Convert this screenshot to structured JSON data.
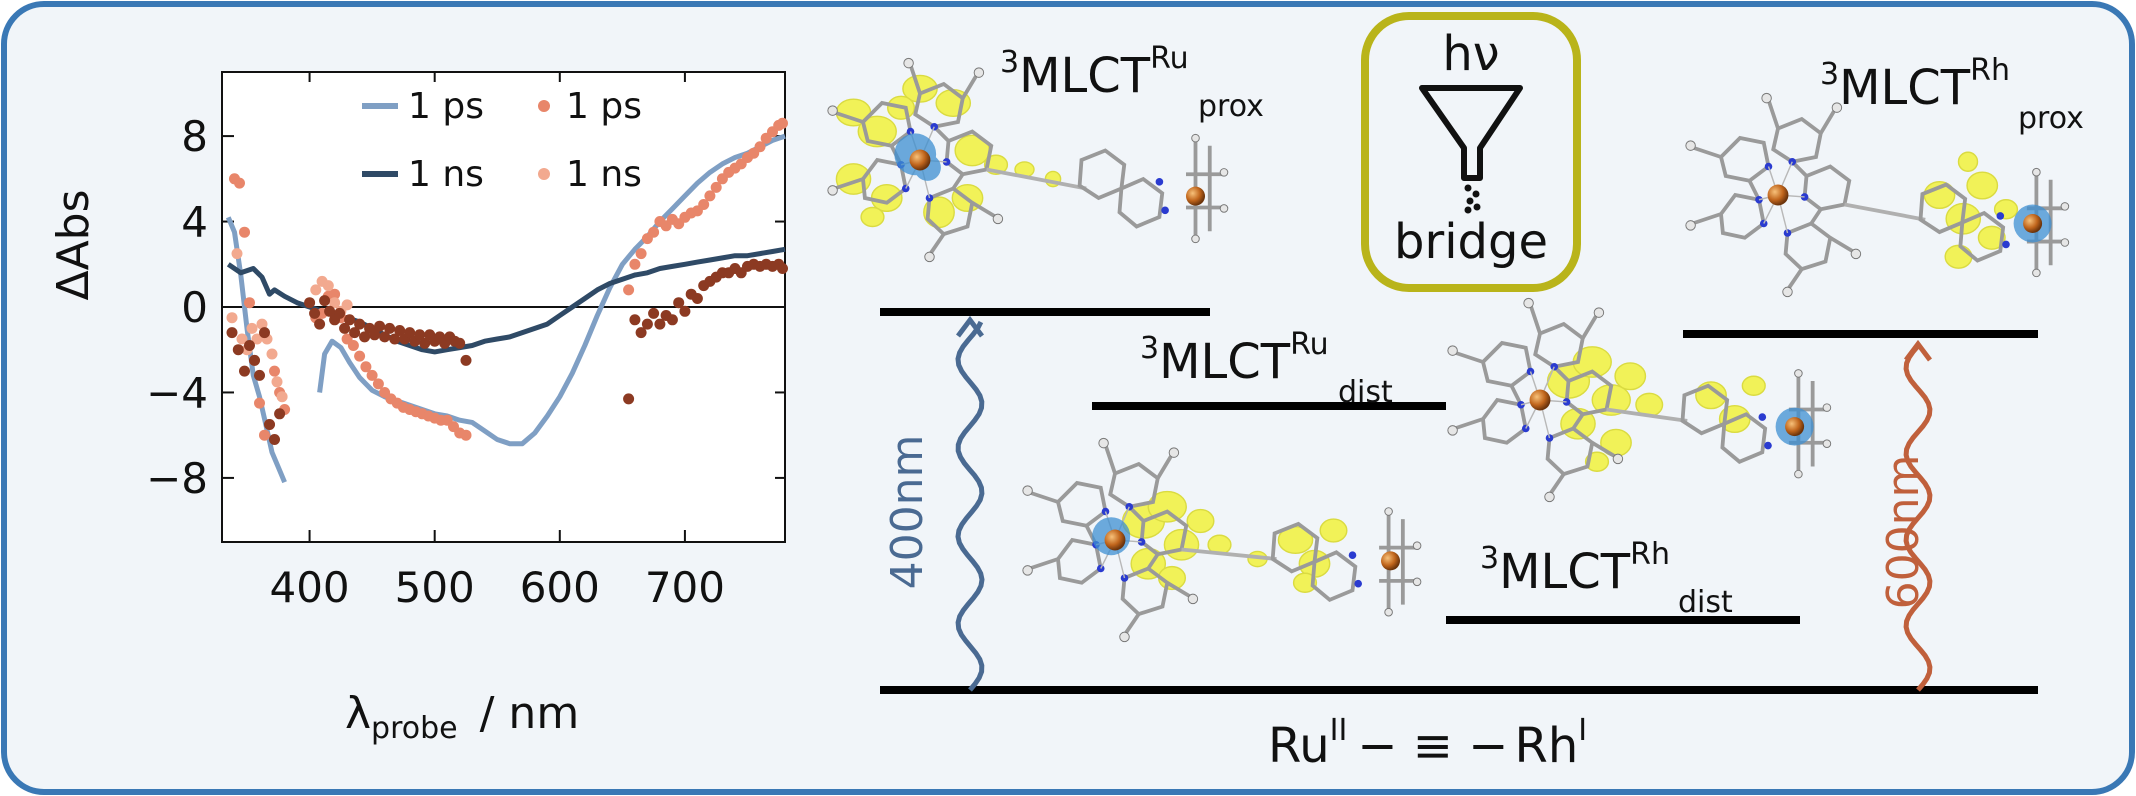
{
  "colors": {
    "frame_border": "#3a78b5",
    "frame_fill": "#f1f5f9",
    "blue_curve": "#7f9fc4",
    "dark_curve": "#2f4a66",
    "orange_dots": "#e8866a",
    "light_orange_dots": "#f2a98f",
    "brown_dots": "#8c3a22",
    "box_border": "#b9b41a",
    "arrow_400": "#4a6a92",
    "arrow_600": "#c0603c",
    "isosurface": "#f2f23c",
    "spin_blue": "#3d8fd1",
    "metal": "#c0651c"
  },
  "chart_data": {
    "type": "line",
    "ylabel": "ΔAbs",
    "xlabel_main": "λ",
    "xlabel_sub": "probe",
    "xlabel_unit": "/ nm",
    "xlim": [
      330,
      780
    ],
    "ylim": [
      -11,
      11
    ],
    "xticks": [
      "400",
      "500",
      "600",
      "700"
    ],
    "yticks": [
      "8",
      "4",
      "0",
      "−4",
      "−8"
    ],
    "legend": [
      {
        "label": "1 ps",
        "style": "line",
        "color": "#7f9fc4"
      },
      {
        "label": "1 ps",
        "style": "dot",
        "color": "#e8866a"
      },
      {
        "label": "1 ns",
        "style": "line",
        "color": "#2f4a66"
      },
      {
        "label": "1 ns",
        "style": "dot",
        "color": "#f2a98f"
      }
    ],
    "series": [
      {
        "name": "1 ps",
        "style": "line",
        "color": "#7f9fc4",
        "segments": [
          [
            [
              335,
              4.2
            ],
            [
              340,
              3.5
            ],
            [
              345,
              1.5
            ],
            [
              350,
              -1
            ],
            [
              355,
              -3.2
            ],
            [
              360,
              -4.2
            ],
            [
              365,
              -5.5
            ],
            [
              370,
              -6.8
            ],
            [
              375,
              -7.5
            ],
            [
              380,
              -8.2
            ]
          ],
          [
            [
              408,
              -4
            ],
            [
              412,
              -2.2
            ],
            [
              418,
              -1.6
            ],
            [
              425,
              -1.9
            ],
            [
              432,
              -2.6
            ],
            [
              440,
              -3.3
            ],
            [
              450,
              -3.9
            ],
            [
              460,
              -4.2
            ],
            [
              470,
              -4.4
            ],
            [
              480,
              -4.6
            ],
            [
              490,
              -4.8
            ],
            [
              500,
              -5.0
            ],
            [
              510,
              -5.1
            ],
            [
              520,
              -5.3
            ],
            [
              530,
              -5.4
            ],
            [
              540,
              -5.8
            ],
            [
              550,
              -6.2
            ],
            [
              560,
              -6.4
            ],
            [
              570,
              -6.4
            ],
            [
              580,
              -5.9
            ],
            [
              590,
              -5.1
            ],
            [
              600,
              -4.2
            ],
            [
              610,
              -3.1
            ],
            [
              620,
              -1.8
            ],
            [
              630,
              -0.4
            ],
            [
              640,
              0.9
            ],
            [
              650,
              2.0
            ],
            [
              660,
              2.7
            ],
            [
              670,
              3.3
            ],
            [
              680,
              4.0
            ],
            [
              690,
              4.6
            ],
            [
              700,
              5.2
            ],
            [
              710,
              5.8
            ],
            [
              720,
              6.3
            ],
            [
              730,
              6.7
            ],
            [
              740,
              7.0
            ],
            [
              750,
              7.2
            ],
            [
              760,
              7.5
            ],
            [
              770,
              7.8
            ],
            [
              780,
              8.0
            ]
          ]
        ]
      },
      {
        "name": "1 ns",
        "style": "line",
        "color": "#2f4a66",
        "segments": [
          [
            [
              335,
              2.0
            ],
            [
              345,
              1.6
            ],
            [
              355,
              1.8
            ],
            [
              362,
              1.4
            ],
            [
              368,
              0.6
            ],
            [
              372,
              0.8
            ],
            [
              380,
              0.5
            ],
            [
              390,
              0.2
            ],
            [
              400,
              0.0
            ],
            [
              410,
              -0.2
            ],
            [
              420,
              -0.4
            ],
            [
              430,
              -0.5
            ],
            [
              440,
              -0.7
            ],
            [
              450,
              -1.0
            ],
            [
              460,
              -1.3
            ],
            [
              470,
              -1.6
            ],
            [
              480,
              -1.8
            ],
            [
              490,
              -2.0
            ],
            [
              500,
              -2.1
            ],
            [
              510,
              -2.0
            ],
            [
              520,
              -1.9
            ],
            [
              530,
              -1.8
            ],
            [
              540,
              -1.6
            ],
            [
              550,
              -1.5
            ],
            [
              560,
              -1.4
            ],
            [
              570,
              -1.2
            ],
            [
              580,
              -1.0
            ],
            [
              590,
              -0.8
            ],
            [
              600,
              -0.4
            ],
            [
              610,
              0.0
            ],
            [
              620,
              0.4
            ],
            [
              630,
              0.8
            ],
            [
              640,
              1.1
            ],
            [
              650,
              1.3
            ],
            [
              660,
              1.5
            ],
            [
              670,
              1.6
            ],
            [
              680,
              1.8
            ],
            [
              690,
              1.9
            ],
            [
              700,
              2.0
            ],
            [
              710,
              2.1
            ],
            [
              720,
              2.2
            ],
            [
              730,
              2.3
            ],
            [
              740,
              2.4
            ],
            [
              750,
              2.4
            ],
            [
              760,
              2.5
            ],
            [
              770,
              2.6
            ],
            [
              780,
              2.7
            ]
          ]
        ]
      },
      {
        "name": "1 ps",
        "style": "dot",
        "color": "#e8866a",
        "points": [
          [
            340,
            6.0
          ],
          [
            344,
            5.8
          ],
          [
            348,
            3.5
          ],
          [
            352,
            0.2
          ],
          [
            356,
            -2.5
          ],
          [
            360,
            -4.5
          ],
          [
            364,
            -6.0
          ],
          [
            368,
            -5.5
          ],
          [
            372,
            -3.0
          ],
          [
            376,
            -4.0
          ],
          [
            380,
            -4.8
          ],
          [
            405,
            -0.5
          ],
          [
            410,
            -0.3
          ],
          [
            415,
            0.5
          ],
          [
            420,
            0.6
          ],
          [
            425,
            -0.5
          ],
          [
            430,
            -1.5
          ],
          [
            435,
            -1.8
          ],
          [
            440,
            -2.3
          ],
          [
            445,
            -2.8
          ],
          [
            450,
            -3.2
          ],
          [
            455,
            -3.6
          ],
          [
            460,
            -4.0
          ],
          [
            465,
            -4.3
          ],
          [
            470,
            -4.5
          ],
          [
            475,
            -4.7
          ],
          [
            480,
            -4.8
          ],
          [
            485,
            -4.9
          ],
          [
            490,
            -5.0
          ],
          [
            495,
            -5.1
          ],
          [
            500,
            -5.2
          ],
          [
            505,
            -5.3
          ],
          [
            510,
            -5.3
          ],
          [
            515,
            -5.6
          ],
          [
            520,
            -5.9
          ],
          [
            525,
            -6.0
          ],
          [
            655,
            0.8
          ],
          [
            660,
            2.0
          ],
          [
            665,
            2.5
          ],
          [
            670,
            3.2
          ],
          [
            675,
            3.5
          ],
          [
            680,
            4.0
          ],
          [
            685,
            3.8
          ],
          [
            690,
            4.1
          ],
          [
            695,
            3.9
          ],
          [
            700,
            4.2
          ],
          [
            705,
            4.4
          ],
          [
            710,
            4.5
          ],
          [
            715,
            4.8
          ],
          [
            720,
            5.2
          ],
          [
            725,
            5.6
          ],
          [
            730,
            6.0
          ],
          [
            735,
            6.3
          ],
          [
            740,
            6.5
          ],
          [
            745,
            6.7
          ],
          [
            750,
            7.0
          ],
          [
            755,
            7.2
          ],
          [
            760,
            7.5
          ],
          [
            765,
            7.9
          ],
          [
            770,
            8.2
          ],
          [
            775,
            8.5
          ],
          [
            778,
            8.6
          ]
        ]
      },
      {
        "name": "1 ns",
        "style": "dot",
        "color": "#f2a98f",
        "points": [
          [
            338,
            -0.5
          ],
          [
            342,
            2.5
          ],
          [
            346,
            -1.5
          ],
          [
            350,
            -2.0
          ],
          [
            354,
            -1.0
          ],
          [
            358,
            -1.5
          ],
          [
            362,
            -0.8
          ],
          [
            366,
            -1.5
          ],
          [
            370,
            -2.2
          ],
          [
            374,
            -3.5
          ],
          [
            378,
            -4.2
          ],
          [
            405,
            0.8
          ],
          [
            410,
            1.2
          ],
          [
            415,
            1.0
          ],
          [
            420,
            0.2
          ],
          [
            425,
            -0.2
          ],
          [
            430,
            0.1
          ]
        ]
      },
      {
        "name": "1 ns",
        "style": "dot",
        "color": "#8c3a22",
        "points": [
          [
            338,
            -1.2
          ],
          [
            343,
            -2.0
          ],
          [
            348,
            -3.0
          ],
          [
            352,
            -1.8
          ],
          [
            356,
            -2.5
          ],
          [
            360,
            -3.2
          ],
          [
            364,
            -1.2
          ],
          [
            368,
            -5.5
          ],
          [
            372,
            -6.2
          ],
          [
            376,
            -5.0
          ],
          [
            400,
            0.2
          ],
          [
            404,
            -0.3
          ],
          [
            408,
            -0.8
          ],
          [
            412,
            0.3
          ],
          [
            416,
            -0.2
          ],
          [
            420,
            -0.6
          ],
          [
            424,
            -0.3
          ],
          [
            428,
            -1.0
          ],
          [
            432,
            -0.6
          ],
          [
            436,
            -1.2
          ],
          [
            440,
            -0.8
          ],
          [
            444,
            -1.4
          ],
          [
            448,
            -1.0
          ],
          [
            452,
            -1.3
          ],
          [
            456,
            -0.9
          ],
          [
            460,
            -1.4
          ],
          [
            464,
            -1.0
          ],
          [
            468,
            -1.5
          ],
          [
            472,
            -1.1
          ],
          [
            476,
            -1.5
          ],
          [
            480,
            -1.2
          ],
          [
            484,
            -1.6
          ],
          [
            488,
            -1.3
          ],
          [
            492,
            -1.7
          ],
          [
            496,
            -1.3
          ],
          [
            500,
            -1.6
          ],
          [
            504,
            -1.4
          ],
          [
            508,
            -1.7
          ],
          [
            512,
            -1.4
          ],
          [
            516,
            -1.6
          ],
          [
            520,
            -1.7
          ],
          [
            525,
            -2.5
          ],
          [
            655,
            -4.3
          ],
          [
            660,
            -0.6
          ],
          [
            665,
            -1.2
          ],
          [
            670,
            -0.8
          ],
          [
            675,
            -0.3
          ],
          [
            680,
            -0.8
          ],
          [
            685,
            -0.4
          ],
          [
            690,
            -0.6
          ],
          [
            695,
            0.2
          ],
          [
            700,
            -0.2
          ],
          [
            705,
            0.6
          ],
          [
            710,
            0.4
          ],
          [
            715,
            1.0
          ],
          [
            720,
            1.2
          ],
          [
            725,
            1.4
          ],
          [
            730,
            1.6
          ],
          [
            735,
            1.6
          ],
          [
            740,
            1.8
          ],
          [
            745,
            1.6
          ],
          [
            750,
            1.9
          ],
          [
            755,
            2.0
          ],
          [
            760,
            1.9
          ],
          [
            765,
            2.0
          ],
          [
            770,
            1.9
          ],
          [
            775,
            2.0
          ],
          [
            778,
            1.8
          ]
        ]
      }
    ]
  },
  "diagram": {
    "states": [
      {
        "id": "ru-prox",
        "base": "MLCT",
        "sup": "3",
        "elem": "Ru",
        "sub": "prox"
      },
      {
        "id": "ru-dist",
        "base": "MLCT",
        "sup": "3",
        "elem": "Ru",
        "sub": "dist"
      },
      {
        "id": "rh-prox",
        "base": "MLCT",
        "sup": "3",
        "elem": "Rh",
        "sub": "prox"
      },
      {
        "id": "rh-dist",
        "base": "MLCT",
        "sup": "3",
        "elem": "Rh",
        "sub": "dist"
      }
    ],
    "ground": {
      "left": "Ru",
      "left_ox": "II",
      "bridge": "− ≡ −",
      "right": "Rh",
      "right_ox": "I"
    },
    "excitation": [
      {
        "label": "400nm",
        "color": "#4a6a92"
      },
      {
        "label": "600nm",
        "color": "#c0603c"
      }
    ],
    "box": {
      "top": "hν",
      "bottom": "bridge"
    }
  }
}
